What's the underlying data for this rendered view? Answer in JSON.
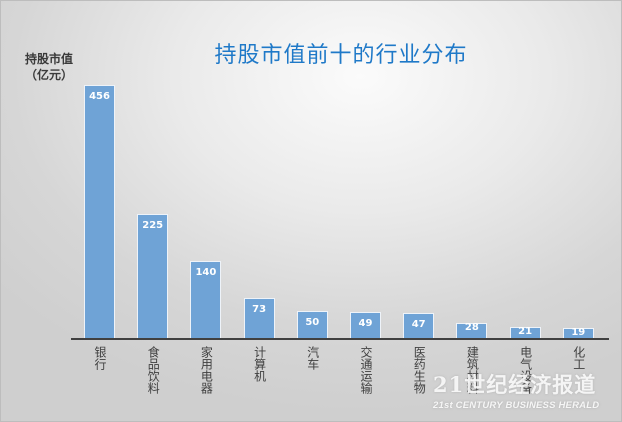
{
  "chart_data": {
    "type": "bar",
    "title": "持股市值前十的行业分布",
    "ylabel": "持股市值（亿元）",
    "ylabel_lines": [
      "持股市值",
      "（亿元）"
    ],
    "xlabel": "",
    "categories": [
      "银行",
      "食品饮料",
      "家用电器",
      "计算机",
      "汽车",
      "交通运输",
      "医药生物",
      "建筑材料",
      "电气设备",
      "化工"
    ],
    "values": [
      456,
      225,
      140,
      73,
      50,
      49,
      47,
      28,
      21,
      19
    ],
    "ylim": [
      0,
      460
    ],
    "grid": false,
    "legend": null,
    "data_labels": true,
    "bar_color": "#6FA3D6"
  },
  "colors": {
    "title": "#1F79C8",
    "bar": "#6FA3D6",
    "axis": "#404040"
  },
  "watermark": {
    "cn": "21世纪经济报道",
    "en": "21st CENTURY BUSINESS HERALD"
  }
}
